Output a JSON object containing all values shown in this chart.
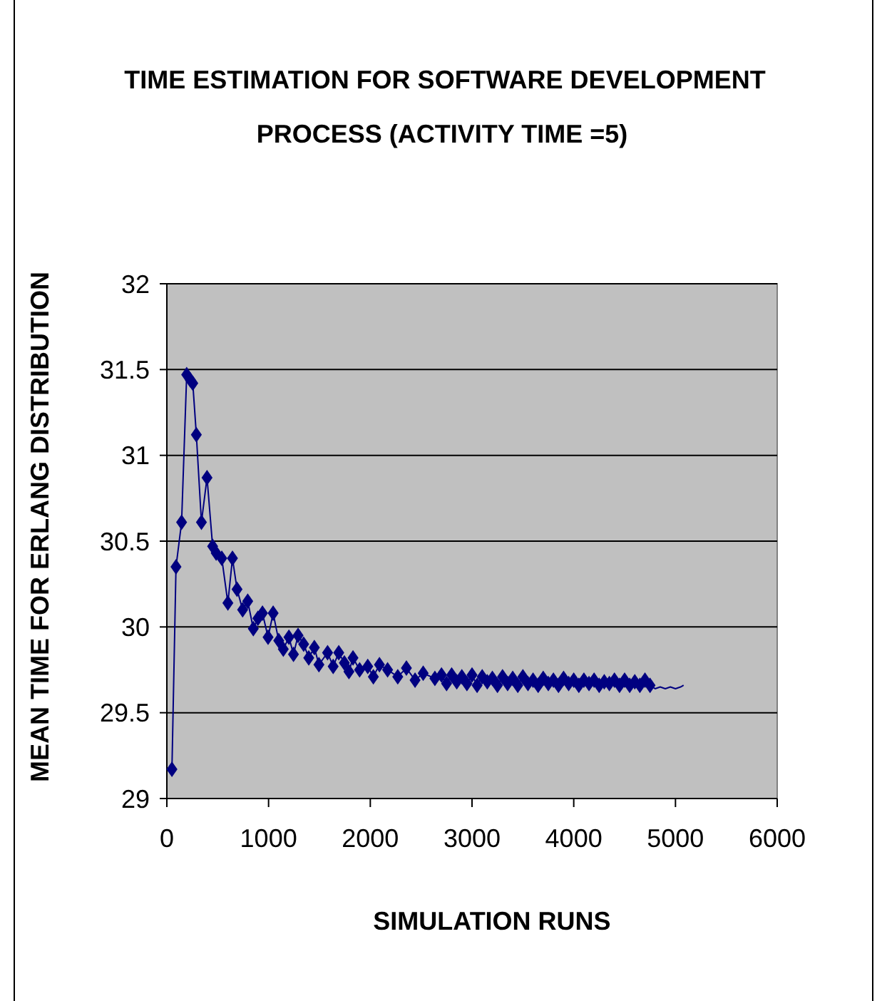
{
  "chart_data": {
    "type": "line",
    "title": "TIME ESTIMATION FOR SOFTWARE DEVELOPMENT\nPROCESS (ACTIVITY TIME =5)",
    "xlabel": "SIMULATION RUNS",
    "ylabel": "MEAN TIME FOR ERLANG DISTRIBUTION",
    "xlim": [
      0,
      6000
    ],
    "xticks": [
      0,
      1000,
      2000,
      3000,
      4000,
      5000,
      6000
    ],
    "ylim": [
      29,
      32
    ],
    "yticks": [
      29,
      29.5,
      30,
      30.5,
      31,
      31.5,
      32
    ],
    "grid": "y",
    "line_style": "solid",
    "series": [
      {
        "color": "#000080",
        "marker": "diamond",
        "x": [
          50,
          90,
          145,
          195,
          230,
          255,
          290,
          340,
          395,
          450,
          485,
          540,
          600,
          645,
          690,
          745,
          795,
          850,
          895,
          940,
          995,
          1045,
          1100,
          1145,
          1200,
          1245,
          1290,
          1345,
          1395,
          1450,
          1495,
          1580,
          1635,
          1690,
          1745,
          1790,
          1830,
          1895,
          1975,
          2030,
          2090,
          2170,
          2270,
          2355,
          2440,
          2520,
          2635,
          2700,
          2750,
          2800,
          2850,
          2900,
          2950,
          3000,
          3050,
          3100,
          3150,
          3200,
          3250,
          3300,
          3350,
          3400,
          3450,
          3500,
          3550,
          3600,
          3650,
          3700,
          3750,
          3800,
          3850,
          3900,
          3950,
          4000,
          4050,
          4100,
          4150,
          4200,
          4250,
          4300,
          4350,
          4400,
          4450,
          4500,
          4550,
          4600,
          4650,
          4700,
          4750
        ],
        "values": [
          29.17,
          30.35,
          30.61,
          31.47,
          31.44,
          31.42,
          31.12,
          30.61,
          30.87,
          30.47,
          30.43,
          30.4,
          30.14,
          30.4,
          30.22,
          30.1,
          30.15,
          29.99,
          30.05,
          30.08,
          29.94,
          30.08,
          29.92,
          29.87,
          29.94,
          29.84,
          29.95,
          29.9,
          29.82,
          29.88,
          29.78,
          29.85,
          29.77,
          29.85,
          29.79,
          29.74,
          29.82,
          29.75,
          29.77,
          29.71,
          29.78,
          29.75,
          29.71,
          29.76,
          29.69,
          29.73,
          29.7,
          29.72,
          29.67,
          29.72,
          29.68,
          29.71,
          29.67,
          29.72,
          29.66,
          29.71,
          29.68,
          29.7,
          29.66,
          29.71,
          29.67,
          29.7,
          29.66,
          29.71,
          29.67,
          29.69,
          29.66,
          29.7,
          29.67,
          29.69,
          29.66,
          29.7,
          29.67,
          29.69,
          29.66,
          29.69,
          29.67,
          29.69,
          29.66,
          29.68,
          29.67,
          29.69,
          29.66,
          29.69,
          29.66,
          29.68,
          29.66,
          29.69,
          29.66
        ]
      },
      {
        "color": "#000080",
        "marker": "none",
        "x": [
          4750,
          4800,
          4850,
          4900,
          4950,
          5000,
          5050,
          5080
        ],
        "values": [
          29.66,
          29.64,
          29.65,
          29.64,
          29.65,
          29.64,
          29.65,
          29.66
        ]
      }
    ]
  }
}
